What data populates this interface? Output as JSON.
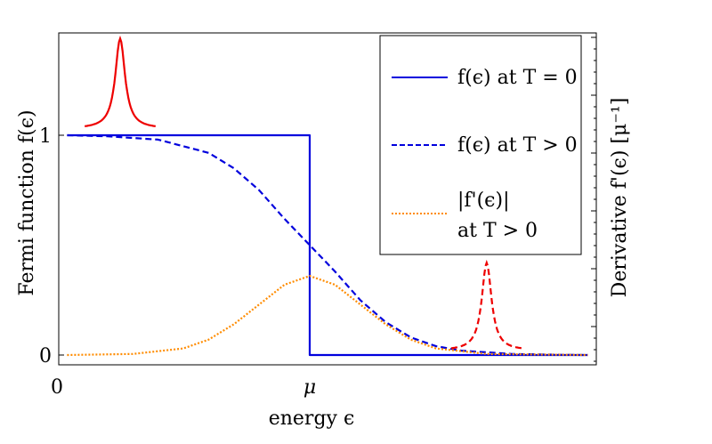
{
  "chart_data": {
    "type": "line",
    "title": "",
    "xlabel": "energy ϵ",
    "ylabel_left": "Fermi function f(ϵ)",
    "ylabel_right": "Derivative f'(ϵ) [μ⁻¹]",
    "xlim": [
      0,
      2.1
    ],
    "ylim": [
      -0.05,
      1.5
    ],
    "x_ticks": [
      {
        "value": 0,
        "label": "0"
      },
      {
        "value": 1,
        "label": "μ"
      }
    ],
    "y_ticks": [
      {
        "value": 0,
        "label": "0"
      },
      {
        "value": 1,
        "label": "1"
      }
    ],
    "grid": false,
    "legend_position": "top-right",
    "series": [
      {
        "name": "f(ϵ) at T = 0",
        "style": "solid",
        "color": "#0000dd",
        "x": [
          0.04,
          1.0,
          1.0,
          2.1
        ],
        "y": [
          1,
          1,
          0,
          0
        ]
      },
      {
        "name": "f(ϵ) at T > 0",
        "style": "dashed",
        "color": "#0000dd",
        "x": [
          0.04,
          0.2,
          0.4,
          0.6,
          0.7,
          0.8,
          0.9,
          1.0,
          1.1,
          1.2,
          1.3,
          1.4,
          1.5,
          1.6,
          1.8,
          2.0,
          2.1
        ],
        "y": [
          1.0,
          0.995,
          0.98,
          0.92,
          0.85,
          0.75,
          0.62,
          0.5,
          0.38,
          0.25,
          0.15,
          0.08,
          0.04,
          0.02,
          0.005,
          0.001,
          0.0
        ]
      },
      {
        "name": "|f'(ϵ)| at T > 0",
        "style": "dotted",
        "color": "#ff8c00",
        "x": [
          0.04,
          0.3,
          0.5,
          0.6,
          0.7,
          0.8,
          0.9,
          1.0,
          1.1,
          1.2,
          1.3,
          1.4,
          1.5,
          1.7,
          2.1
        ],
        "y": [
          0.0,
          0.005,
          0.03,
          0.07,
          0.14,
          0.23,
          0.32,
          0.36,
          0.32,
          0.23,
          0.14,
          0.07,
          0.03,
          0.005,
          0.0
        ]
      }
    ],
    "insets": [
      {
        "style": "solid",
        "color": "#ee0000",
        "center_x": 0.25,
        "peak_y": 1.44,
        "base_y": 1.03,
        "half_width": 0.14
      },
      {
        "style": "dashed",
        "color": "#ee0000",
        "center_x": 1.7,
        "peak_y": 0.42,
        "base_y": 0.02,
        "half_width": 0.14
      }
    ]
  }
}
